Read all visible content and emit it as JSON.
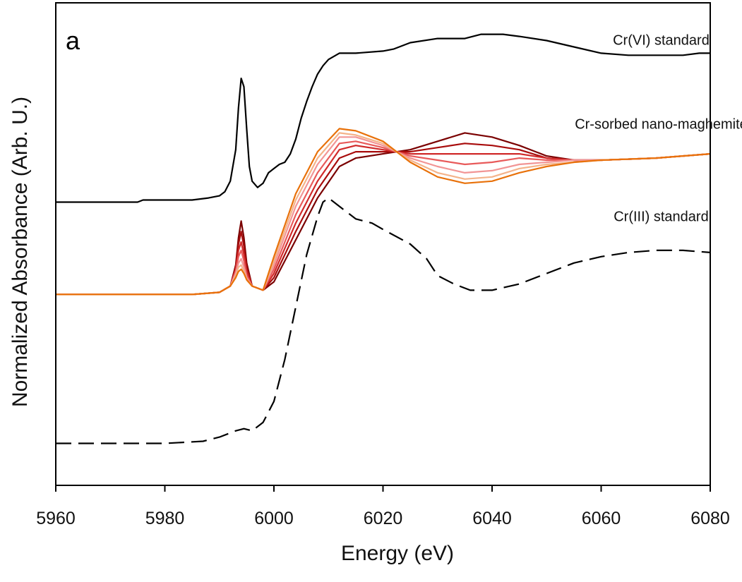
{
  "chart_data": {
    "type": "line",
    "panel_label": "a",
    "xlabel": "Energy (eV)",
    "ylabel": "Normalized Absorbance (Arb. U.)",
    "xlim": [
      5960,
      6080
    ],
    "ylim": [
      -0.2,
      2.1
    ],
    "xticks": [
      5960,
      5980,
      6000,
      6020,
      6040,
      6060,
      6080
    ],
    "xtick_labels": [
      "5960",
      "5980",
      "6000",
      "6020",
      "6040",
      "6060",
      "6080"
    ],
    "annotations": [
      {
        "text": "Cr(VI) standard",
        "x": 6071,
        "y": 1.9
      },
      {
        "text": "Cr-sorbed nano-maghemite",
        "x": 6071,
        "y": 1.5
      },
      {
        "text": "Cr(III) standard",
        "x": 6071,
        "y": 1.06
      }
    ],
    "series": [
      {
        "name": "Cr(VI) standard",
        "color": "#000000",
        "dash": "solid",
        "x": [
          5960,
          5970,
          5975,
          5976,
          5985,
          5988,
          5990,
          5991,
          5992,
          5993,
          5993.5,
          5994,
          5994.5,
          5995,
          5995.5,
          5996,
          5997,
          5998,
          5999,
          6000,
          6001,
          6002,
          6003,
          6004,
          6005,
          6006,
          6007,
          6008,
          6009,
          6010,
          6012,
          6015,
          6020,
          6022,
          6025,
          6030,
          6035,
          6038,
          6042,
          6045,
          6050,
          6055,
          6060,
          6065,
          6070,
          6075,
          6078,
          6080
        ],
        "y": [
          1.15,
          1.15,
          1.15,
          1.16,
          1.16,
          1.17,
          1.18,
          1.2,
          1.25,
          1.4,
          1.6,
          1.74,
          1.7,
          1.5,
          1.32,
          1.25,
          1.22,
          1.24,
          1.29,
          1.31,
          1.33,
          1.34,
          1.38,
          1.45,
          1.55,
          1.63,
          1.7,
          1.76,
          1.8,
          1.83,
          1.86,
          1.86,
          1.87,
          1.88,
          1.91,
          1.93,
          1.93,
          1.95,
          1.95,
          1.94,
          1.92,
          1.89,
          1.86,
          1.85,
          1.85,
          1.85,
          1.86,
          1.86
        ]
      },
      {
        "name": "Cr(III) standard",
        "color": "#000000",
        "dash": "dashed",
        "x": [
          5960,
          5970,
          5980,
          5987,
          5990,
          5993,
          5994.5,
          5996,
          5998,
          6000,
          6002,
          6004,
          6006,
          6008,
          6009,
          6010,
          6012,
          6015,
          6018,
          6020,
          6025,
          6028,
          6030,
          6033,
          6036,
          6040,
          6045,
          6050,
          6055,
          6060,
          6065,
          6070,
          6075,
          6080
        ],
        "y": [
          0.0,
          0.0,
          0.0,
          0.01,
          0.03,
          0.06,
          0.07,
          0.06,
          0.1,
          0.2,
          0.4,
          0.65,
          0.9,
          1.08,
          1.15,
          1.17,
          1.13,
          1.07,
          1.05,
          1.02,
          0.95,
          0.88,
          0.8,
          0.76,
          0.73,
          0.73,
          0.76,
          0.81,
          0.86,
          0.89,
          0.91,
          0.92,
          0.92,
          0.91
        ]
      },
      {
        "name": "Cr-sorbed nano-maghemite (1)",
        "color": "#7a0000",
        "dash": "solid",
        "x": [
          5960,
          5985,
          5990,
          5992,
          5993,
          5993.5,
          5994,
          5994.5,
          5995,
          5996,
          5998,
          6000,
          6004,
          6008,
          6012,
          6015,
          6020,
          6025,
          6030,
          6035,
          6040,
          6045,
          6050,
          6055,
          6060,
          6070,
          6080
        ],
        "y": [
          0.71,
          0.71,
          0.72,
          0.75,
          0.85,
          0.98,
          1.06,
          0.98,
          0.86,
          0.75,
          0.73,
          0.77,
          0.97,
          1.17,
          1.32,
          1.36,
          1.38,
          1.4,
          1.44,
          1.48,
          1.46,
          1.42,
          1.37,
          1.35,
          1.35,
          1.36,
          1.38
        ]
      },
      {
        "name": "Cr-sorbed nano-maghemite (2)",
        "color": "#a80c0c",
        "dash": "solid",
        "x": [
          5960,
          5985,
          5990,
          5992,
          5993,
          5993.5,
          5994,
          5994.5,
          5995,
          5996,
          5998,
          6000,
          6004,
          6008,
          6012,
          6015,
          6020,
          6025,
          6030,
          6035,
          6040,
          6045,
          6050,
          6055,
          6060,
          6070,
          6080
        ],
        "y": [
          0.71,
          0.71,
          0.72,
          0.75,
          0.84,
          0.95,
          1.01,
          0.94,
          0.84,
          0.75,
          0.73,
          0.79,
          1.01,
          1.21,
          1.36,
          1.39,
          1.39,
          1.39,
          1.41,
          1.43,
          1.42,
          1.4,
          1.36,
          1.35,
          1.35,
          1.36,
          1.38
        ]
      },
      {
        "name": "Cr-sorbed nano-maghemite (3)",
        "color": "#d02a2a",
        "dash": "solid",
        "x": [
          5960,
          5985,
          5990,
          5992,
          5993,
          5993.5,
          5994,
          5994.5,
          5995,
          5996,
          5998,
          6000,
          6004,
          6008,
          6012,
          6015,
          6020,
          6025,
          6030,
          6035,
          6040,
          6045,
          6050,
          6055,
          6060,
          6070,
          6080
        ],
        "y": [
          0.71,
          0.71,
          0.72,
          0.75,
          0.83,
          0.92,
          0.96,
          0.9,
          0.82,
          0.75,
          0.73,
          0.81,
          1.05,
          1.25,
          1.4,
          1.42,
          1.4,
          1.38,
          1.38,
          1.38,
          1.38,
          1.38,
          1.36,
          1.35,
          1.35,
          1.36,
          1.38
        ]
      },
      {
        "name": "Cr-sorbed nano-maghemite (4)",
        "color": "#e85a5a",
        "dash": "solid",
        "x": [
          5960,
          5985,
          5990,
          5992,
          5993,
          5993.5,
          5994,
          5994.5,
          5995,
          5996,
          5998,
          6000,
          6004,
          6008,
          6012,
          6015,
          6020,
          6025,
          6030,
          6035,
          6040,
          6045,
          6050,
          6055,
          6060,
          6070,
          6080
        ],
        "y": [
          0.71,
          0.71,
          0.72,
          0.75,
          0.82,
          0.89,
          0.92,
          0.87,
          0.8,
          0.75,
          0.73,
          0.83,
          1.09,
          1.29,
          1.43,
          1.44,
          1.41,
          1.37,
          1.35,
          1.33,
          1.34,
          1.36,
          1.35,
          1.35,
          1.35,
          1.36,
          1.38
        ]
      },
      {
        "name": "Cr-sorbed nano-maghemite (5)",
        "color": "#f29595",
        "dash": "solid",
        "x": [
          5960,
          5985,
          5990,
          5992,
          5993,
          5993.5,
          5994,
          5994.5,
          5995,
          5996,
          5998,
          6000,
          6004,
          6008,
          6012,
          6015,
          6020,
          6025,
          6030,
          6035,
          6040,
          6045,
          6050,
          6055,
          6060,
          6070,
          6080
        ],
        "y": [
          0.71,
          0.71,
          0.72,
          0.75,
          0.81,
          0.86,
          0.88,
          0.84,
          0.79,
          0.75,
          0.73,
          0.85,
          1.13,
          1.33,
          1.46,
          1.46,
          1.42,
          1.36,
          1.32,
          1.29,
          1.3,
          1.33,
          1.34,
          1.35,
          1.35,
          1.36,
          1.38
        ]
      },
      {
        "name": "Cr-sorbed nano-maghemite (6)",
        "color": "#f4b38a",
        "dash": "solid",
        "x": [
          5960,
          5985,
          5990,
          5992,
          5993,
          5993.5,
          5994,
          5994.5,
          5995,
          5996,
          5998,
          6000,
          6004,
          6008,
          6012,
          6015,
          6020,
          6025,
          6030,
          6035,
          6040,
          6045,
          6050,
          6055,
          6060,
          6070,
          6080
        ],
        "y": [
          0.71,
          0.71,
          0.72,
          0.75,
          0.8,
          0.84,
          0.85,
          0.82,
          0.78,
          0.75,
          0.73,
          0.87,
          1.16,
          1.36,
          1.48,
          1.47,
          1.43,
          1.35,
          1.29,
          1.26,
          1.27,
          1.31,
          1.33,
          1.34,
          1.35,
          1.36,
          1.38
        ]
      },
      {
        "name": "Cr-sorbed nano-maghemite (7)",
        "color": "#e8710a",
        "dash": "solid",
        "x": [
          5960,
          5985,
          5990,
          5992,
          5993,
          5993.5,
          5994,
          5994.5,
          5995,
          5996,
          5998,
          6000,
          6004,
          6008,
          6012,
          6015,
          6020,
          6025,
          6030,
          6035,
          6040,
          6045,
          6050,
          6055,
          6060,
          6070,
          6080
        ],
        "y": [
          0.71,
          0.71,
          0.72,
          0.75,
          0.79,
          0.82,
          0.83,
          0.81,
          0.78,
          0.75,
          0.73,
          0.89,
          1.19,
          1.39,
          1.5,
          1.49,
          1.44,
          1.34,
          1.27,
          1.24,
          1.25,
          1.29,
          1.32,
          1.34,
          1.35,
          1.36,
          1.38
        ]
      }
    ]
  }
}
